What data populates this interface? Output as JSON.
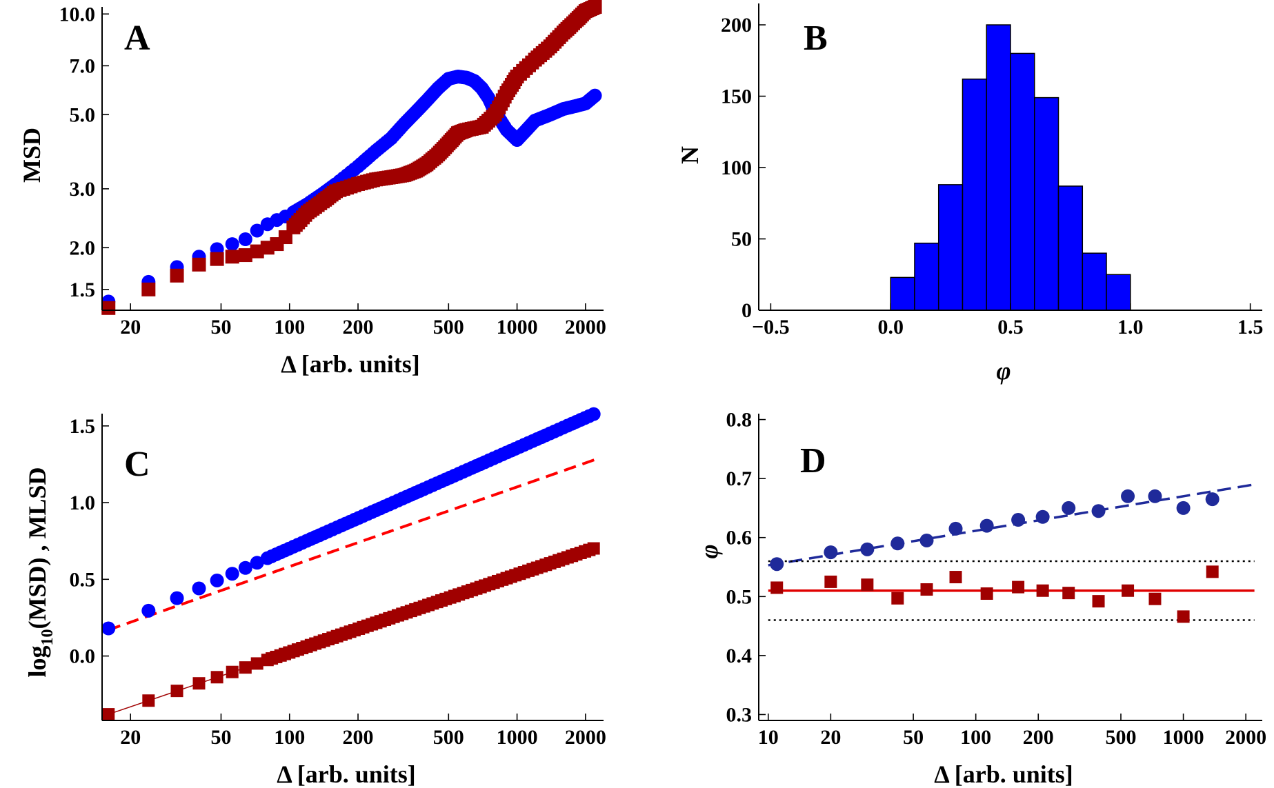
{
  "figure": {
    "colors": {
      "blue": "#0000ff",
      "darkred": "#a00000",
      "red": "#ff0000",
      "navy": "#1f2a9a",
      "histBlue": "#0000ff"
    }
  },
  "chart_data": [
    {
      "panel": "A",
      "type": "scatter",
      "xscale": "log",
      "yscale": "log",
      "xlabel": "Δ [arb. units]",
      "ylabel": "MSD",
      "xlim": [
        15,
        2400
      ],
      "ylim": [
        1.3,
        10.5
      ],
      "xticks": [
        "20",
        "50",
        "100",
        "200",
        "500",
        "1000",
        "2000"
      ],
      "xtick_values": [
        20,
        50,
        100,
        200,
        500,
        1000,
        2000
      ],
      "yticks": [
        "1.5",
        "2.0",
        "3.0",
        "5.0",
        "7.0",
        "10.0"
      ],
      "ytick_values": [
        1.5,
        2.0,
        3.0,
        5.0,
        7.0,
        10.0
      ],
      "series": [
        {
          "name": "circles",
          "marker": "circle",
          "color": "#0000ff",
          "x": [
            16,
            24,
            32,
            40,
            48,
            56,
            64,
            72,
            80,
            88,
            96,
            104,
            120,
            140,
            160,
            200,
            240,
            280,
            320,
            360,
            400,
            450,
            500,
            550,
            600,
            650,
            700,
            750,
            800,
            900,
            1000,
            1100,
            1200,
            1400,
            1600,
            1800,
            2000,
            2200
          ],
          "y": [
            1.38,
            1.58,
            1.75,
            1.88,
            1.98,
            2.05,
            2.12,
            2.25,
            2.35,
            2.42,
            2.48,
            2.55,
            2.7,
            2.9,
            3.1,
            3.5,
            3.9,
            4.25,
            4.7,
            5.1,
            5.5,
            6.0,
            6.4,
            6.5,
            6.45,
            6.3,
            6.0,
            5.6,
            5.1,
            4.5,
            4.2,
            4.5,
            4.8,
            5.0,
            5.2,
            5.3,
            5.4,
            5.7
          ]
        },
        {
          "name": "squares",
          "marker": "square",
          "color": "#a00000",
          "x": [
            16,
            24,
            32,
            40,
            48,
            56,
            64,
            72,
            80,
            88,
            96,
            104,
            120,
            140,
            160,
            200,
            240,
            280,
            320,
            360,
            400,
            450,
            500,
            550,
            600,
            700,
            800,
            900,
            1000,
            1200,
            1400,
            1600,
            1800,
            2000,
            2200
          ],
          "y": [
            1.32,
            1.5,
            1.65,
            1.78,
            1.85,
            1.88,
            1.9,
            1.95,
            2.0,
            2.05,
            2.15,
            2.3,
            2.55,
            2.75,
            2.95,
            3.1,
            3.2,
            3.25,
            3.3,
            3.4,
            3.55,
            3.8,
            4.1,
            4.4,
            4.5,
            4.6,
            5.0,
            5.8,
            6.5,
            7.3,
            8.0,
            8.8,
            9.5,
            10.2,
            10.5
          ]
        }
      ]
    },
    {
      "panel": "B",
      "type": "bar",
      "xlabel": "φ",
      "ylabel": "N",
      "xlim": [
        -0.55,
        1.55
      ],
      "ylim": [
        0,
        215
      ],
      "xticks": [
        "−0.5",
        "0.0",
        "0.5",
        "1.0",
        "1.5"
      ],
      "xtick_values": [
        -0.5,
        0.0,
        0.5,
        1.0,
        1.5
      ],
      "yticks": [
        "0",
        "50",
        "100",
        "150",
        "200"
      ],
      "ytick_values": [
        0,
        50,
        100,
        150,
        200
      ],
      "bin_edges": [
        0.0,
        0.1,
        0.2,
        0.3,
        0.4,
        0.5,
        0.6,
        0.7,
        0.8,
        0.9,
        1.0
      ],
      "values": [
        23,
        47,
        88,
        162,
        200,
        180,
        149,
        87,
        40,
        25
      ],
      "color": "#0000ff"
    },
    {
      "panel": "C",
      "type": "scatter",
      "xscale": "log",
      "xlabel": "Δ [arb. units]",
      "ylabel": "log10(MSD) , MLSD",
      "ylabel_parts": {
        "pre": "log",
        "sub": "10",
        "post": "(MSD) ,  MLSD"
      },
      "xlim": [
        15,
        2400
      ],
      "ylim": [
        -0.42,
        1.58
      ],
      "xticks": [
        "20",
        "50",
        "100",
        "200",
        "500",
        "1000",
        "2000"
      ],
      "xtick_values": [
        20,
        50,
        100,
        200,
        500,
        1000,
        2000
      ],
      "yticks": [
        "0.0",
        "0.5",
        "1.0",
        "1.5"
      ],
      "ytick_values": [
        0.0,
        0.5,
        1.0,
        1.5
      ],
      "series": [
        {
          "name": "circles",
          "marker": "circle",
          "color": "#0000ff",
          "fit": "y = 0.18 + 0.655·log10(x/16)",
          "start": 16,
          "end": 2200
        },
        {
          "name": "squares",
          "marker": "square",
          "color": "#a00000",
          "fit": "y = -0.38 + 0.507·log10(x/16)",
          "start": 16,
          "end": 2200
        },
        {
          "name": "dashed fit",
          "marker": "none",
          "style": "dashed",
          "color": "#ff0000",
          "x": [
            16,
            2200
          ],
          "y": [
            0.17,
            1.28
          ]
        },
        {
          "name": "solid fit",
          "marker": "none",
          "style": "solid",
          "color": "#a00000",
          "x": [
            16,
            2200
          ],
          "y": [
            -0.38,
            0.7
          ]
        }
      ]
    },
    {
      "panel": "D",
      "type": "scatter",
      "xscale": "log",
      "xlabel": "Δ [arb. units]",
      "ylabel": "φ",
      "xlim": [
        9,
        2400
      ],
      "ylim": [
        0.29,
        0.81
      ],
      "xticks": [
        "10",
        "20",
        "50",
        "100",
        "200",
        "500",
        "1000",
        "2000"
      ],
      "xtick_values": [
        10,
        20,
        50,
        100,
        200,
        500,
        1000,
        2000
      ],
      "yticks": [
        "0.3",
        "0.4",
        "0.5",
        "0.6",
        "0.7",
        "0.8"
      ],
      "ytick_values": [
        0.3,
        0.4,
        0.5,
        0.6,
        0.7,
        0.8
      ],
      "series": [
        {
          "name": "circles",
          "marker": "circle",
          "color": "#1f2a9a",
          "x": [
            11,
            20,
            30,
            42,
            58,
            80,
            113,
            160,
            210,
            280,
            390,
            540,
            730,
            1000,
            1380
          ],
          "y": [
            0.555,
            0.575,
            0.58,
            0.59,
            0.595,
            0.615,
            0.62,
            0.63,
            0.635,
            0.65,
            0.645,
            0.67,
            0.67,
            0.65,
            0.665
          ]
        },
        {
          "name": "squares",
          "marker": "square",
          "color": "#a00000",
          "x": [
            11,
            20,
            30,
            42,
            58,
            80,
            113,
            160,
            210,
            280,
            390,
            540,
            730,
            1000,
            1380
          ],
          "y": [
            0.515,
            0.525,
            0.52,
            0.497,
            0.512,
            0.533,
            0.505,
            0.516,
            0.51,
            0.506,
            0.492,
            0.51,
            0.496,
            0.466,
            0.542
          ]
        },
        {
          "name": "dashed fit",
          "marker": "none",
          "style": "dashed",
          "color": "#1f2a9a",
          "x": [
            10,
            2200
          ],
          "y": [
            0.553,
            0.69
          ]
        },
        {
          "name": "solid line",
          "marker": "none",
          "style": "solid",
          "color": "#e00000",
          "x": [
            10,
            2200
          ],
          "y": [
            0.51,
            0.51
          ]
        },
        {
          "name": "dotted upper",
          "marker": "none",
          "style": "dotted",
          "color": "#000000",
          "x": [
            10,
            2200
          ],
          "y": [
            0.56,
            0.56
          ]
        },
        {
          "name": "dotted lower",
          "marker": "none",
          "style": "dotted",
          "color": "#000000",
          "x": [
            10,
            2200
          ],
          "y": [
            0.46,
            0.46
          ]
        }
      ]
    }
  ]
}
